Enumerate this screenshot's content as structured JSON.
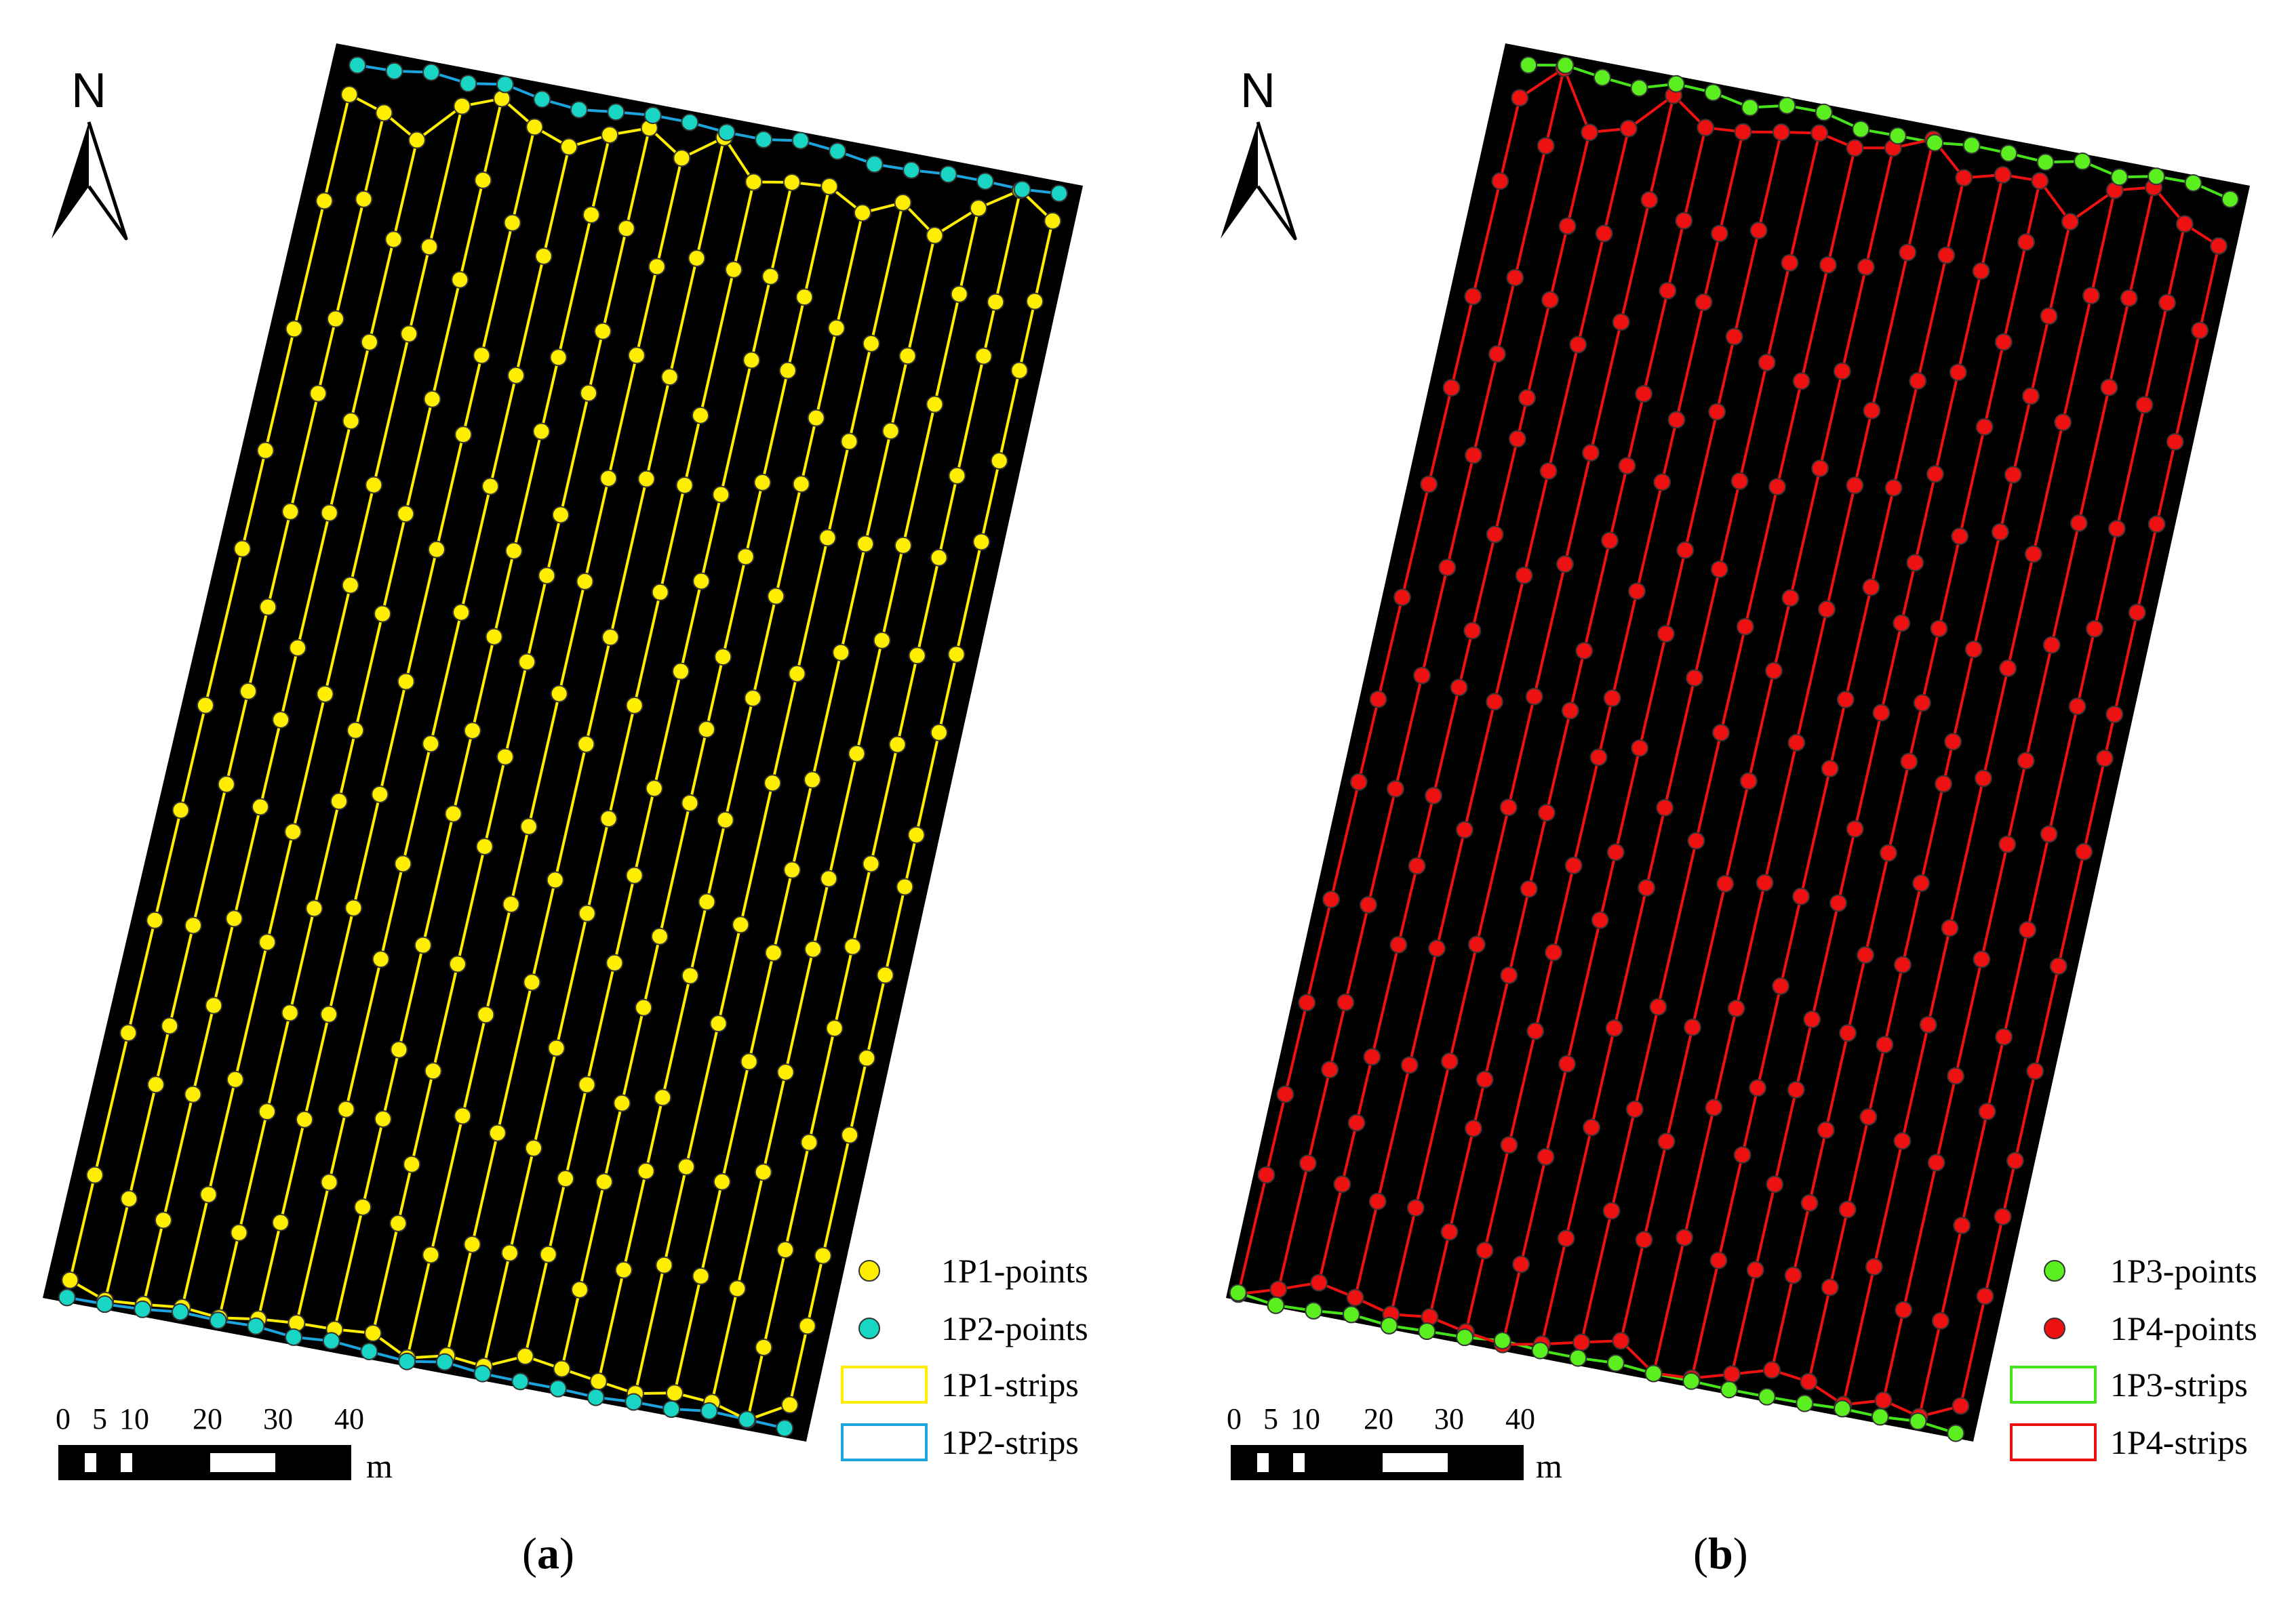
{
  "panels": [
    {
      "id": "a",
      "caption_letter": "a",
      "north_label": "N",
      "scale_ticks": [
        "0",
        "5",
        "10",
        "20",
        "30",
        "40"
      ],
      "scale_unit": "m",
      "background_color": "#000000",
      "legend": [
        {
          "label": "1P1-points",
          "kind": "point",
          "fill": "#ffee00",
          "stroke": "#333333"
        },
        {
          "label": "1P2-points",
          "kind": "point",
          "fill": "#19d6c4",
          "stroke": "#333333"
        },
        {
          "label": "1P1-strips",
          "kind": "strip",
          "stroke": "#ffee00"
        },
        {
          "label": "1P2-strips",
          "kind": "strip",
          "stroke": "#1ea4dc"
        }
      ],
      "primary": {
        "point_fill": "#ffee00",
        "line": "#ffee00"
      },
      "secondary": {
        "point_fill": "#19d6c4",
        "line": "#1ea4dc"
      }
    },
    {
      "id": "b",
      "caption_letter": "b",
      "north_label": "N",
      "scale_ticks": [
        "0",
        "5",
        "10",
        "20",
        "30",
        "40"
      ],
      "scale_unit": "m",
      "background_color": "#000000",
      "legend": [
        {
          "label": "1P3-points",
          "kind": "point",
          "fill": "#5bef1f",
          "stroke": "#333333"
        },
        {
          "label": "1P4-points",
          "kind": "point",
          "fill": "#ee1111",
          "stroke": "#333333"
        },
        {
          "label": "1P3-strips",
          "kind": "strip",
          "stroke": "#47e31a"
        },
        {
          "label": "1P4-strips",
          "kind": "strip",
          "stroke": "#ee1111"
        }
      ],
      "primary": {
        "point_fill": "#ee1111",
        "line": "#ee1111"
      },
      "secondary": {
        "point_fill": "#5bef1f",
        "line": "#47e31a"
      }
    }
  ]
}
